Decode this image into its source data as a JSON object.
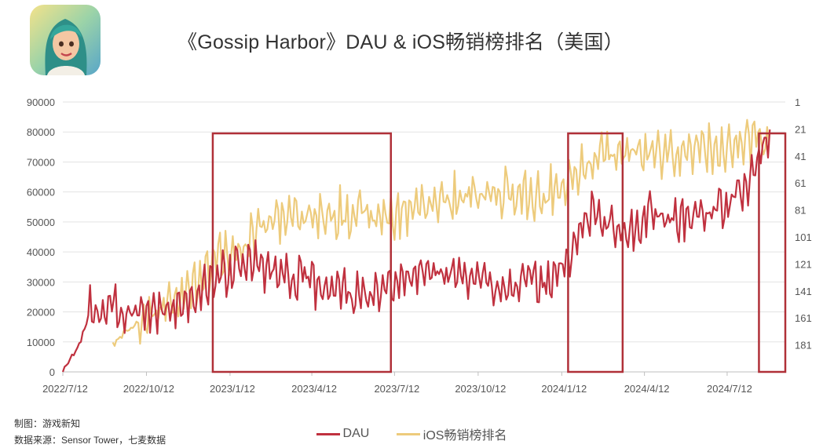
{
  "title": "《Gossip Harbor》DAU & iOS畅销榜排名（美国）",
  "footnote_producer": "制图：游戏新知",
  "footnote_source": "数据来源：Sensor Tower，七麦数据",
  "colors": {
    "dau": "#C0313F",
    "ios": "#EDCB7C",
    "highlight_box": "#B03038",
    "grid": "#E3E3E3",
    "axis_text": "#555555"
  },
  "chart_data": {
    "type": "line",
    "title": "《Gossip Harbor》DAU & iOS畅销榜排名（美国）",
    "x_ticks": [
      "2022/7/12",
      "2022/10/12",
      "2023/1/12",
      "2023/4/12",
      "2023/7/12",
      "2023/10/12",
      "2024/1/12",
      "2024/4/12",
      "2024/7/12"
    ],
    "y_left_ticks": [
      "0",
      "10000",
      "20000",
      "30000",
      "40000",
      "50000",
      "60000",
      "70000",
      "80000",
      "90000"
    ],
    "y_left_range": [
      0,
      90000
    ],
    "y_right_ticks": [
      "1",
      "21",
      "41",
      "61",
      "81",
      "101",
      "121",
      "141",
      "161",
      "181"
    ],
    "y_right_range": [
      1,
      201
    ],
    "y_right_inverted": true,
    "grid": true,
    "legend_position": "bottom",
    "series": [
      {
        "name": "DAU",
        "axis": "left",
        "color": "#C0313F",
        "points": [
          [
            "2022-07-12",
            0
          ],
          [
            "2022-07-20",
            4000
          ],
          [
            "2022-07-28",
            8000
          ],
          [
            "2022-08-05",
            14000
          ],
          [
            "2022-08-12",
            22000
          ],
          [
            "2022-08-20",
            20000
          ],
          [
            "2022-09-01",
            21000
          ],
          [
            "2022-09-15",
            20000
          ],
          [
            "2022-10-01",
            21000
          ],
          [
            "2022-10-20",
            20000
          ],
          [
            "2022-11-05",
            21000
          ],
          [
            "2022-11-20",
            23000
          ],
          [
            "2022-12-10",
            26000
          ],
          [
            "2022-12-25",
            31000
          ],
          [
            "2023-01-12",
            34000
          ],
          [
            "2023-02-01",
            36000
          ],
          [
            "2023-02-20",
            35000
          ],
          [
            "2023-03-10",
            33000
          ],
          [
            "2023-04-01",
            31000
          ],
          [
            "2023-04-20",
            29000
          ],
          [
            "2023-05-10",
            28000
          ],
          [
            "2023-06-01",
            25000
          ],
          [
            "2023-06-20",
            25000
          ],
          [
            "2023-07-12",
            28000
          ],
          [
            "2023-08-01",
            32000
          ],
          [
            "2023-08-20",
            34000
          ],
          [
            "2023-09-10",
            33000
          ],
          [
            "2023-10-01",
            31000
          ],
          [
            "2023-10-20",
            30000
          ],
          [
            "2023-11-10",
            29000
          ],
          [
            "2023-12-01",
            30000
          ],
          [
            "2023-12-20",
            29000
          ],
          [
            "2024-01-01",
            31000
          ],
          [
            "2024-01-15",
            35000
          ],
          [
            "2024-01-25",
            42000
          ],
          [
            "2024-02-05",
            50000
          ],
          [
            "2024-02-15",
            53000
          ],
          [
            "2024-02-28",
            50000
          ],
          [
            "2024-03-15",
            47000
          ],
          [
            "2024-04-01",
            48000
          ],
          [
            "2024-04-15",
            53000
          ],
          [
            "2024-05-01",
            52000
          ],
          [
            "2024-05-20",
            51000
          ],
          [
            "2024-06-10",
            53000
          ],
          [
            "2024-06-30",
            54000
          ],
          [
            "2024-07-12",
            56000
          ],
          [
            "2024-07-25",
            60000
          ],
          [
            "2024-08-05",
            62000
          ],
          [
            "2024-08-20",
            75000
          ],
          [
            "2024-08-28",
            80000
          ]
        ]
      },
      {
        "name": "iOS畅销榜排名",
        "axis": "right",
        "color": "#EDCB7C",
        "points": [
          [
            "2022-09-05",
            180
          ],
          [
            "2022-09-25",
            168
          ],
          [
            "2022-10-12",
            160
          ],
          [
            "2022-11-01",
            154
          ],
          [
            "2022-11-20",
            145
          ],
          [
            "2022-12-10",
            132
          ],
          [
            "2022-12-25",
            120
          ],
          [
            "2023-01-12",
            113
          ],
          [
            "2023-01-25",
            108
          ],
          [
            "2023-02-10",
            96
          ],
          [
            "2023-03-01",
            88
          ],
          [
            "2023-03-20",
            86
          ],
          [
            "2023-04-12",
            84
          ],
          [
            "2023-05-01",
            83
          ],
          [
            "2023-05-20",
            84
          ],
          [
            "2023-06-10",
            86
          ],
          [
            "2023-07-01",
            88
          ],
          [
            "2023-07-12",
            87
          ],
          [
            "2023-08-01",
            80
          ],
          [
            "2023-08-20",
            76
          ],
          [
            "2023-09-10",
            74
          ],
          [
            "2023-10-01",
            72
          ],
          [
            "2023-10-20",
            70
          ],
          [
            "2023-11-10",
            68
          ],
          [
            "2023-12-01",
            70
          ],
          [
            "2023-12-20",
            72
          ],
          [
            "2024-01-01",
            66
          ],
          [
            "2024-01-20",
            60
          ],
          [
            "2024-02-05",
            50
          ],
          [
            "2024-02-20",
            42
          ],
          [
            "2024-03-10",
            38
          ],
          [
            "2024-04-01",
            40
          ],
          [
            "2024-04-20",
            39
          ],
          [
            "2024-05-10",
            38
          ],
          [
            "2024-06-01",
            36
          ],
          [
            "2024-06-20",
            38
          ],
          [
            "2024-07-12",
            37
          ],
          [
            "2024-07-25",
            33
          ],
          [
            "2024-08-10",
            28
          ],
          [
            "2024-08-28",
            31
          ]
        ]
      }
    ],
    "highlight_ranges": [
      [
        "2022-12-24",
        "2023-07-08"
      ],
      [
        "2024-01-19",
        "2024-03-19"
      ],
      [
        "2024-08-16",
        "2024-09-14"
      ]
    ]
  }
}
